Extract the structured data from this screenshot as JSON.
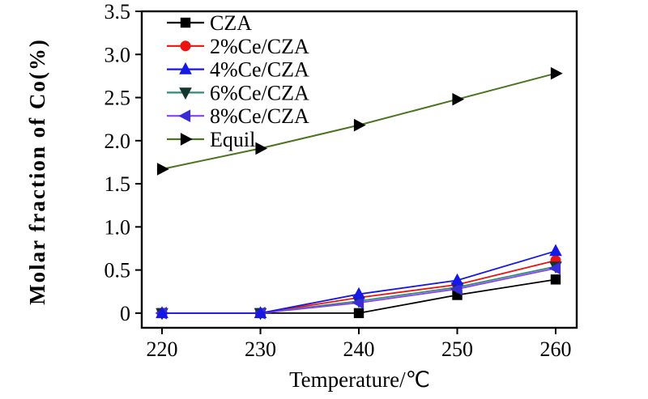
{
  "figure": {
    "background_color": "#ffffff",
    "frame_color": "#000000"
  },
  "chart_data": {
    "type": "line",
    "title": "",
    "xlabel": "Temperature/℃",
    "ylabel": "Molar fraction of Co(%)",
    "x": [
      220,
      230,
      240,
      250,
      260
    ],
    "x_ticks": [
      "220",
      "230",
      "240",
      "250",
      "260"
    ],
    "y_ticks": [
      "0",
      "0.5",
      "1.0",
      "1.5",
      "2.0",
      "2.5",
      "3.0",
      "3.5"
    ],
    "y_tick_values": [
      0,
      0.5,
      1.0,
      1.5,
      2.0,
      2.5,
      3.0,
      3.5
    ],
    "xlim": [
      217.94,
      262.14
    ],
    "ylim": [
      -0.17,
      3.5
    ],
    "grid": false,
    "legend_position": "top-left-inside",
    "series": [
      {
        "name": "CZA",
        "marker": "square",
        "color": "#000000",
        "marker_color": "#000000",
        "values": [
          0,
          0,
          0.0,
          0.21,
          0.39
        ]
      },
      {
        "name": "2%Ce/CZA",
        "marker": "circle",
        "color": "#ee1111",
        "marker_color": "#ee1111",
        "values": [
          0,
          0,
          0.18,
          0.33,
          0.61
        ]
      },
      {
        "name": "4%Ce/CZA",
        "marker": "triangle-up",
        "color": "#1717e6",
        "marker_color": "#1717e6",
        "values": [
          0,
          0,
          0.22,
          0.38,
          0.72
        ]
      },
      {
        "name": "6%Ce/CZA",
        "marker": "triangle-down",
        "color": "#2e8b74",
        "marker_color": "#14362d",
        "values": [
          0,
          0,
          0.14,
          0.3,
          0.54
        ]
      },
      {
        "name": "8%Ce/CZA",
        "marker": "triangle-left",
        "color": "#8a3ff0",
        "marker_color": "#3a2dd8",
        "values": [
          0,
          0,
          0.12,
          0.28,
          0.52
        ]
      },
      {
        "name": "Equil",
        "marker": "triangle-right",
        "color": "#4a741d",
        "marker_color": "#000000",
        "values": [
          1.67,
          1.91,
          2.18,
          2.48,
          2.78
        ]
      }
    ]
  }
}
